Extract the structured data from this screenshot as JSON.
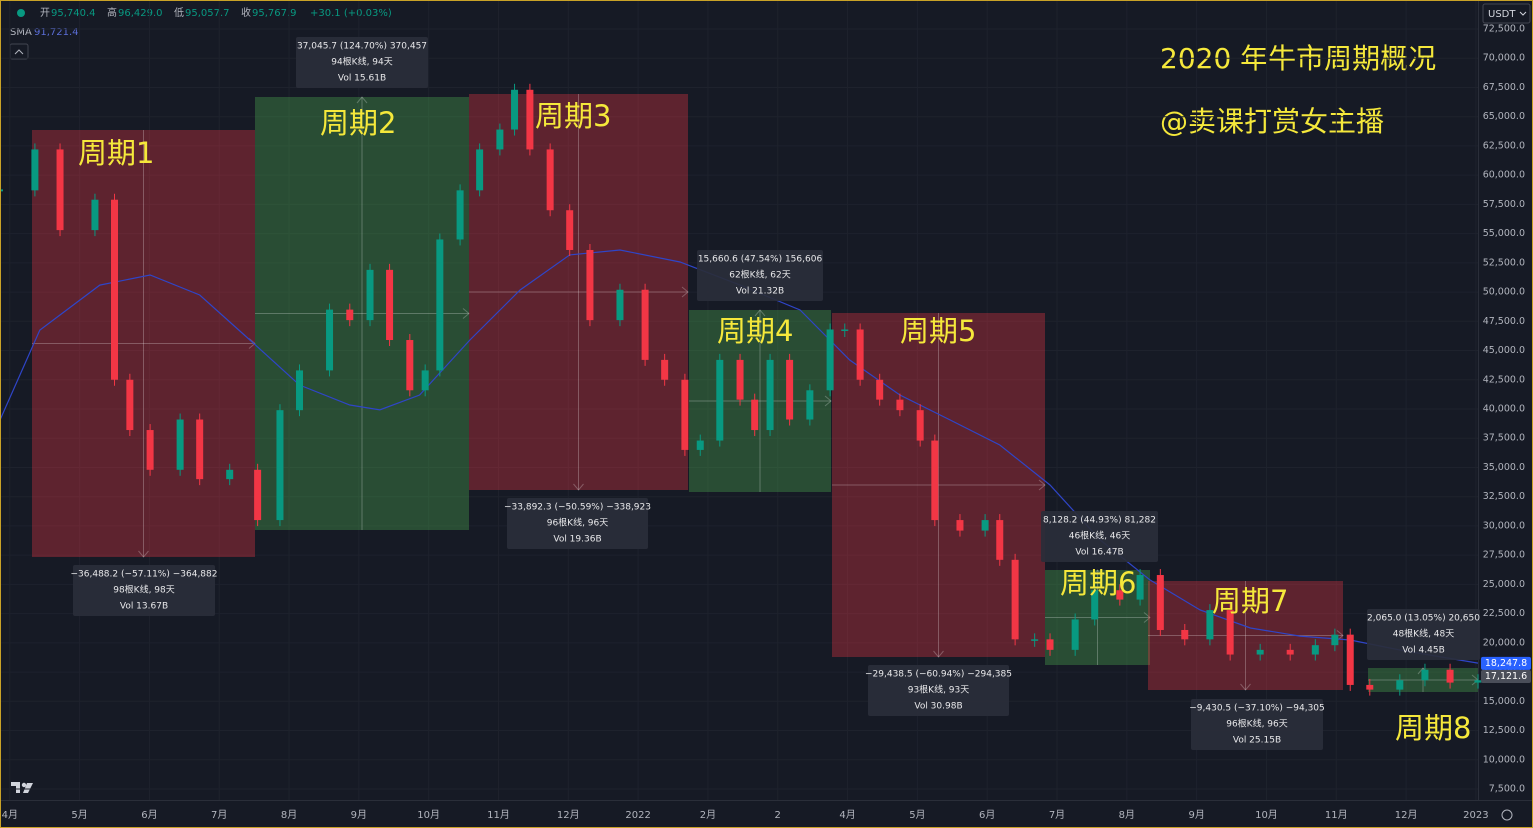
{
  "header": {
    "ohlc": [
      {
        "label": "开",
        "value": "95,740.4"
      },
      {
        "label": "高",
        "value": "96,429.0"
      },
      {
        "label": "低",
        "value": "95,057.7"
      },
      {
        "label": "收",
        "value": "95,767.9"
      }
    ],
    "change": "+30.1 (+0.03%)",
    "indicator": {
      "name": "SMA",
      "value": "91,721.4"
    },
    "currency": "USDT"
  },
  "chart_data": {
    "type": "candlestick",
    "title": "2020 年牛市周期概况",
    "subtitle": "@卖课打赏女主播",
    "x": [
      -0.14,
      0.36,
      0.72,
      1.22,
      1.5,
      1.72,
      2.01,
      2.44,
      2.72,
      3.15,
      3.55,
      3.87,
      4.15,
      4.58,
      4.87,
      5.16,
      5.44,
      5.73,
      5.95,
      6.16,
      6.45,
      6.73,
      7.02,
      7.23,
      7.45,
      7.74,
      8.02,
      8.31,
      8.74,
      9.1,
      9.38,
      9.67,
      9.89,
      10.17,
      10.46,
      10.67,
      10.89,
      11.17,
      11.46,
      11.75,
      11.96,
      12.18,
      12.46,
      12.75,
      13.04,
      13.25,
      13.61,
      13.97,
      14.18,
      14.4,
      14.68,
      14.9,
      15.26,
      15.54,
      15.9,
      16.19,
      16.48,
      16.83,
      17.19,
      17.48,
      17.91,
      18.34,
      18.7,
      18.98,
      19.2,
      19.48,
      19.91,
      20.27,
      20.63,
      21.03
    ],
    "values": [
      58700,
      62200,
      55300,
      57900,
      42500,
      38200,
      34800,
      39100,
      34000,
      34800,
      30500,
      39900,
      43300,
      48500,
      47600,
      51900,
      45900,
      41600,
      43300,
      54500,
      58700,
      62200,
      63900,
      67300,
      62200,
      57000,
      53600,
      47600,
      50200,
      44200,
      42500,
      36500,
      37300,
      44200,
      40800,
      38200,
      44200,
      39100,
      41600,
      46800,
      46800,
      42500,
      40800,
      39900,
      37300,
      30500,
      29600,
      30500,
      27100,
      20300,
      20300,
      19400,
      22000,
      24500,
      23700,
      25800,
      21100,
      20300,
      22800,
      19000,
      19400,
      19000,
      19800,
      20700,
      16400,
      16000,
      16800,
      17700,
      16600,
      16800
    ],
    "up_color": "#089981",
    "down_color": "#f23645",
    "sma": {
      "color": "#2f45c8",
      "x": [
        -0.14,
        0.43,
        1.29,
        2.01,
        2.72,
        3.44,
        4.15,
        4.87,
        5.3,
        5.87,
        6.59,
        7.31,
        8.02,
        8.74,
        9.6,
        10.46,
        11.32,
        12.03,
        12.75,
        13.47,
        14.18,
        14.9,
        15.62,
        16.33,
        17.05,
        17.77,
        18.48,
        19.2,
        19.91,
        21.03
      ],
      "values": [
        39060,
        46750,
        50600,
        51460,
        49750,
        45900,
        42050,
        40340,
        39920,
        41200,
        45900,
        50180,
        53180,
        53600,
        52570,
        50600,
        48470,
        44190,
        41200,
        39060,
        36920,
        33500,
        28800,
        25380,
        22810,
        21270,
        20580,
        20240,
        19390,
        18270
      ]
    },
    "xlim": [
      -0.14,
      21.03
    ],
    "xticks": [
      {
        "value": 0,
        "label": "4月"
      },
      {
        "value": 1,
        "label": "5月"
      },
      {
        "value": 2,
        "label": "6月"
      },
      {
        "value": 3,
        "label": "7月"
      },
      {
        "value": 4,
        "label": "8月"
      },
      {
        "value": 5,
        "label": "9月"
      },
      {
        "value": 6,
        "label": "10月"
      },
      {
        "value": 7,
        "label": "11月"
      },
      {
        "value": 8,
        "label": "12月"
      },
      {
        "value": 9,
        "label": "2022"
      },
      {
        "value": 10,
        "label": "2月"
      },
      {
        "value": 11,
        "label": "2"
      },
      {
        "value": 12,
        "label": "4月"
      },
      {
        "value": 13,
        "label": "5月"
      },
      {
        "value": 14,
        "label": "6月"
      },
      {
        "value": 15,
        "label": "7月"
      },
      {
        "value": 16,
        "label": "8月"
      },
      {
        "value": 17,
        "label": "9月"
      },
      {
        "value": 18,
        "label": "10月"
      },
      {
        "value": 19,
        "label": "11月"
      },
      {
        "value": 20,
        "label": "12月"
      },
      {
        "value": 21,
        "label": "2023"
      }
    ],
    "ylim": [
      6559,
      74980
    ],
    "yticks": [
      {
        "value": 72500,
        "label": "72,500.0"
      },
      {
        "value": 70000,
        "label": "70,000.0"
      },
      {
        "value": 67500,
        "label": "67,500.0"
      },
      {
        "value": 65000,
        "label": "65,000.0"
      },
      {
        "value": 62500,
        "label": "62,500.0"
      },
      {
        "value": 60000,
        "label": "60,000.0"
      },
      {
        "value": 57500,
        "label": "57,500.0"
      },
      {
        "value": 55000,
        "label": "55,000.0"
      },
      {
        "value": 52500,
        "label": "52,500.0"
      },
      {
        "value": 50000,
        "label": "50,000.0"
      },
      {
        "value": 47500,
        "label": "47,500.0"
      },
      {
        "value": 45000,
        "label": "45,000.0"
      },
      {
        "value": 42500,
        "label": "42,500.0"
      },
      {
        "value": 40000,
        "label": "40,000.0"
      },
      {
        "value": 37500,
        "label": "37,500.0"
      },
      {
        "value": 35000,
        "label": "35,000.0"
      },
      {
        "value": 32500,
        "label": "32,500.0"
      },
      {
        "value": 30000,
        "label": "30,000.0"
      },
      {
        "value": 27500,
        "label": "27,500.0"
      },
      {
        "value": 25000,
        "label": "25,000.0"
      },
      {
        "value": 22500,
        "label": "22,500.0"
      },
      {
        "value": 20000,
        "label": "20,000.0"
      },
      {
        "value": 17500,
        "label": "17,500.0"
      },
      {
        "value": 15000,
        "label": "15,000.0"
      },
      {
        "value": 12500,
        "label": "12,500.0"
      },
      {
        "value": 10000,
        "label": "10,000.0"
      },
      {
        "value": 7500,
        "label": "7,500.0"
      }
    ],
    "grid": true,
    "last_values": [
      {
        "value": 18247.8,
        "label": "18,247.8",
        "color": "#2962ff"
      },
      {
        "value": 17121.6,
        "label": "17,121.6",
        "color": "#4a4e59"
      }
    ],
    "annotations": [
      {
        "label": "周期1",
        "direction": "down",
        "stats": [
          "−36,488.2 (−57.11%) −364,882",
          "98根K线, 98天",
          "Vol 13.67B"
        ]
      },
      {
        "label": "周期2",
        "direction": "up",
        "stats": [
          "37,045.7 (124.70%) 370,457",
          "94根K线, 94天",
          "Vol 15.61B"
        ]
      },
      {
        "label": "周期3",
        "direction": "down",
        "stats": [
          "−33,892.3 (−50.59%) −338,923",
          "96根K线, 96天",
          "Vol 19.36B"
        ]
      },
      {
        "label": "周期4",
        "direction": "up",
        "stats": [
          "15,660.6 (47.54%) 156,606",
          "62根K线, 62天",
          "Vol 21.32B"
        ]
      },
      {
        "label": "周期5",
        "direction": "down",
        "stats": [
          "−29,438.5 (−60.94%) −294,385",
          "93根K线, 93天",
          "Vol 30.98B"
        ]
      },
      {
        "label": "周期6",
        "direction": "up",
        "stats": [
          "8,128.2 (44.93%) 81,282",
          "46根K线, 46天",
          "Vol 16.47B"
        ]
      },
      {
        "label": "周期7",
        "direction": "down",
        "stats": [
          "−9,430.5 (−37.10%) −94,305",
          "96根K线, 96天",
          "Vol 25.15B"
        ]
      },
      {
        "label": "周期8",
        "direction": "up",
        "stats": [
          "2,065.0 (13.05%) 20,650",
          "48根K线, 48天",
          "Vol 4.45B"
        ]
      }
    ]
  }
}
